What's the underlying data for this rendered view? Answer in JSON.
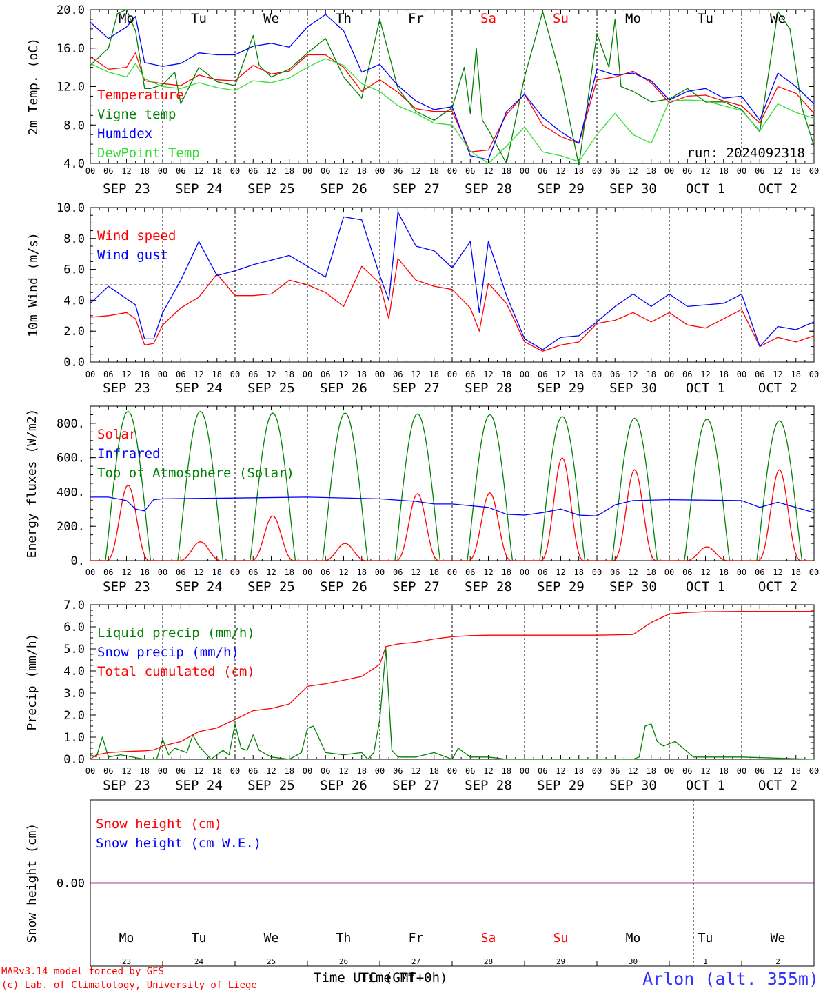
{
  "footer": {
    "credit_line1": "MARv3.14 model forced by GFS",
    "credit_line2": "(c) Lab. of Climatology, University of Liege",
    "time_label": "Time UTC (GMT+0h)",
    "time_label_overlap": "Time Tf",
    "station": "Arlon (alt. 355m)"
  },
  "run_label": "run: 2024092318",
  "colors": {
    "red": "#ff0000",
    "green": "#008000",
    "blue": "#0000ff",
    "lime": "#33dd33",
    "purple": "#800080",
    "grid": "#000000"
  },
  "days": [
    {
      "dow": "Mo",
      "date": "SEP 23",
      "num": "23",
      "weekend": false
    },
    {
      "dow": "Tu",
      "date": "SEP 24",
      "num": "24",
      "weekend": false
    },
    {
      "dow": "We",
      "date": "SEP 25",
      "num": "25",
      "weekend": false
    },
    {
      "dow": "Th",
      "date": "SEP 26",
      "num": "26",
      "weekend": false
    },
    {
      "dow": "Fr",
      "date": "SEP 27",
      "num": "27",
      "weekend": false
    },
    {
      "dow": "Sa",
      "date": "SEP 28",
      "num": "28",
      "weekend": true
    },
    {
      "dow": "Su",
      "date": "SEP 29",
      "num": "29",
      "weekend": true
    },
    {
      "dow": "Mo",
      "date": "SEP 30",
      "num": "30",
      "weekend": false
    },
    {
      "dow": "Tu",
      "date": "OCT  1",
      "num": "1",
      "weekend": false
    },
    {
      "dow": "We",
      "date": "OCT  2",
      "num": "2",
      "weekend": false
    }
  ],
  "hour_ticks": [
    "00",
    "06",
    "12",
    "18"
  ],
  "chart_data": [
    {
      "id": "temp",
      "type": "line",
      "ylabel": "2m Temp. (oC)",
      "ylim": [
        4,
        20
      ],
      "yticks": [
        "4.0",
        "8.0",
        "12.0",
        "16.0",
        "20.0"
      ],
      "legend": [
        "Temperature",
        "Vigne temp",
        "Humidex",
        "DewPoint Temp"
      ],
      "legend_colors": [
        "red",
        "green",
        "blue",
        "lime"
      ],
      "series": [
        {
          "name": "Temperature",
          "color": "red",
          "x": [
            0,
            6,
            12,
            15,
            18,
            24,
            30,
            36,
            42,
            48,
            54,
            60,
            66,
            72,
            78,
            84,
            90,
            96,
            102,
            108,
            114,
            120,
            126,
            132,
            138,
            144,
            150,
            156,
            162,
            168,
            174,
            180,
            186,
            192,
            198,
            204,
            210,
            216,
            222,
            228,
            234,
            240
          ],
          "y": [
            15.1,
            13.8,
            14.0,
            15.5,
            12.6,
            12.3,
            12.1,
            13.2,
            12.7,
            12.6,
            14.2,
            13.3,
            13.6,
            15.3,
            15.3,
            14.0,
            11.5,
            12.7,
            11.4,
            9.7,
            9.4,
            9.4,
            5.2,
            5.4,
            9.1,
            11.2,
            8.0,
            6.8,
            6.1,
            12.7,
            13.0,
            13.6,
            12.4,
            10.3,
            11.0,
            11.1,
            10.5,
            10.0,
            8.2,
            12.0,
            11.3,
            9.2
          ]
        },
        {
          "name": "Vigne temp",
          "color": "green",
          "x": [
            0,
            6,
            9,
            12,
            15,
            18,
            20,
            24,
            28,
            30,
            36,
            42,
            48,
            54,
            56,
            60,
            66,
            72,
            78,
            84,
            90,
            96,
            102,
            108,
            114,
            120,
            124,
            126,
            128,
            130,
            132,
            138,
            144,
            150,
            156,
            162,
            168,
            172,
            174,
            176,
            180,
            186,
            192,
            198,
            204,
            210,
            216,
            222,
            228,
            232,
            236,
            240
          ],
          "y": [
            14.2,
            16.0,
            19.6,
            20.0,
            17.8,
            11.8,
            11.8,
            12.2,
            13.5,
            10.2,
            14.0,
            12.5,
            12.1,
            17.3,
            14.2,
            13.0,
            13.8,
            15.5,
            17.0,
            13.0,
            10.8,
            19.0,
            11.8,
            9.4,
            8.5,
            9.8,
            14.0,
            9.2,
            16.0,
            8.5,
            7.5,
            4.0,
            13.0,
            19.8,
            13.0,
            3.8,
            17.5,
            14.0,
            19.0,
            12.0,
            11.5,
            10.4,
            10.7,
            11.8,
            10.4,
            10.4,
            9.6,
            7.3,
            19.8,
            18.0,
            9.8,
            5.8
          ]
        },
        {
          "name": "Humidex",
          "color": "blue",
          "x": [
            0,
            6,
            12,
            15,
            18,
            24,
            30,
            36,
            42,
            48,
            54,
            60,
            66,
            72,
            78,
            84,
            90,
            96,
            102,
            108,
            114,
            120,
            126,
            132,
            138,
            144,
            150,
            156,
            162,
            168,
            174,
            180,
            186,
            192,
            198,
            204,
            210,
            216,
            222,
            228,
            234,
            240
          ],
          "y": [
            18.7,
            17.0,
            18.2,
            19.3,
            14.5,
            14.1,
            14.4,
            15.5,
            15.3,
            15.3,
            16.2,
            16.5,
            16.1,
            18.2,
            19.5,
            17.8,
            13.5,
            14.3,
            12.1,
            10.5,
            9.6,
            9.9,
            4.8,
            4.4,
            9.4,
            11.2,
            8.8,
            7.3,
            6.1,
            13.8,
            13.2,
            13.4,
            12.6,
            10.6,
            11.5,
            11.8,
            10.8,
            11.0,
            8.5,
            13.4,
            12.0,
            10.2
          ]
        },
        {
          "name": "DewPoint Temp",
          "color": "lime",
          "x": [
            0,
            6,
            12,
            15,
            18,
            24,
            30,
            36,
            42,
            48,
            54,
            60,
            66,
            72,
            78,
            84,
            90,
            96,
            102,
            108,
            114,
            120,
            126,
            132,
            138,
            144,
            150,
            156,
            162,
            168,
            174,
            180,
            186,
            192,
            198,
            204,
            210,
            216,
            222,
            228,
            234,
            240
          ],
          "y": [
            14.4,
            13.5,
            13.0,
            14.4,
            12.8,
            12.0,
            11.8,
            12.4,
            11.9,
            11.6,
            12.6,
            12.4,
            12.9,
            14.0,
            14.9,
            14.2,
            12.3,
            11.5,
            10.0,
            9.2,
            8.2,
            8.0,
            5.3,
            4.0,
            5.8,
            7.8,
            5.2,
            4.8,
            4.2,
            7.0,
            9.2,
            7.0,
            6.1,
            10.5,
            10.6,
            10.5,
            10.0,
            9.5,
            7.4,
            10.2,
            9.3,
            8.7
          ]
        }
      ]
    },
    {
      "id": "wind",
      "type": "line",
      "ylabel": "10m Wind (m/s)",
      "ylim": [
        0,
        10
      ],
      "yticks": [
        "0.0",
        "2.0",
        "4.0",
        "6.0",
        "8.0",
        "10.0"
      ],
      "dashed_ref": 5,
      "legend": [
        "Wind speed",
        "Wind gust"
      ],
      "legend_colors": [
        "red",
        "blue"
      ],
      "series": [
        {
          "name": "Wind speed",
          "color": "red",
          "x": [
            0,
            6,
            12,
            15,
            18,
            21,
            24,
            30,
            36,
            42,
            48,
            54,
            60,
            66,
            72,
            78,
            84,
            90,
            96,
            99,
            102,
            108,
            114,
            120,
            126,
            129,
            132,
            138,
            144,
            150,
            156,
            162,
            168,
            174,
            180,
            186,
            192,
            198,
            204,
            210,
            216,
            222,
            228,
            234,
            240
          ],
          "y": [
            2.9,
            3.0,
            3.2,
            2.8,
            1.1,
            1.2,
            2.4,
            3.5,
            4.2,
            5.7,
            4.3,
            4.3,
            4.4,
            5.3,
            5.0,
            4.5,
            3.6,
            6.2,
            5.1,
            2.8,
            6.7,
            5.3,
            4.9,
            4.7,
            3.5,
            2.0,
            5.1,
            3.8,
            1.3,
            0.7,
            1.1,
            1.3,
            2.5,
            2.7,
            3.2,
            2.6,
            3.2,
            2.4,
            2.2,
            2.8,
            3.4,
            1.0,
            1.6,
            1.3,
            1.7
          ]
        },
        {
          "name": "Wind gust",
          "color": "blue",
          "x": [
            0,
            6,
            12,
            15,
            18,
            21,
            24,
            30,
            36,
            42,
            48,
            54,
            60,
            66,
            72,
            78,
            84,
            90,
            96,
            99,
            102,
            108,
            114,
            120,
            126,
            129,
            132,
            138,
            144,
            150,
            156,
            162,
            168,
            174,
            180,
            186,
            192,
            198,
            204,
            210,
            216,
            222,
            228,
            234,
            240
          ],
          "y": [
            3.8,
            4.9,
            4.1,
            3.7,
            1.5,
            1.5,
            3.2,
            5.3,
            7.8,
            5.6,
            5.9,
            6.3,
            6.6,
            6.9,
            6.2,
            5.5,
            9.4,
            9.2,
            5.6,
            4.0,
            9.7,
            7.5,
            7.2,
            6.1,
            7.8,
            3.2,
            7.8,
            4.3,
            1.5,
            0.8,
            1.6,
            1.7,
            2.6,
            3.6,
            4.4,
            3.6,
            4.4,
            3.6,
            3.7,
            3.8,
            4.4,
            1.0,
            2.3,
            2.1,
            2.6
          ]
        }
      ]
    },
    {
      "id": "flux",
      "type": "line",
      "ylabel": "Energy fluxes (W/m2)",
      "ylim": [
        0,
        900
      ],
      "yticks": [
        "0.",
        "200.",
        "400.",
        "600.",
        "800."
      ],
      "legend": [
        "Solar",
        "Infrared",
        "Top of Atmosphere (Solar)"
      ],
      "legend_colors": [
        "red",
        "blue",
        "green"
      ],
      "solar_peaks": [
        440,
        110,
        260,
        100,
        390,
        395,
        600,
        530,
        80,
        530
      ],
      "toa_peaks": [
        870,
        870,
        860,
        860,
        855,
        850,
        840,
        830,
        825,
        815
      ],
      "series": [
        {
          "name": "Infrared",
          "color": "blue",
          "x": [
            0,
            6,
            12,
            15,
            18,
            21,
            24,
            48,
            72,
            96,
            108,
            114,
            120,
            126,
            132,
            138,
            144,
            150,
            156,
            162,
            168,
            174,
            180,
            192,
            216,
            222,
            228,
            240
          ],
          "y": [
            370,
            370,
            350,
            300,
            290,
            355,
            360,
            365,
            370,
            360,
            345,
            330,
            330,
            320,
            310,
            270,
            265,
            280,
            300,
            265,
            260,
            325,
            350,
            355,
            350,
            310,
            340,
            280
          ]
        }
      ]
    },
    {
      "id": "precip",
      "type": "line",
      "ylabel": "Precip (mm/h)",
      "ylim": [
        0,
        7
      ],
      "yticks": [
        "0.0",
        "1.0",
        "2.0",
        "3.0",
        "4.0",
        "5.0",
        "6.0",
        "7.0"
      ],
      "legend": [
        "Liquid precip (mm/h)",
        "Snow precip (mm/h)",
        "Total cumulated (cm)"
      ],
      "legend_colors": [
        "green",
        "blue",
        "red"
      ],
      "series": [
        {
          "name": "Liquid precip (mm/h)",
          "color": "green",
          "x": [
            0,
            2,
            4,
            6,
            10,
            18,
            22,
            24,
            26,
            28,
            32,
            34,
            36,
            40,
            44,
            46,
            48,
            50,
            52,
            54,
            56,
            60,
            66,
            70,
            72,
            74,
            78,
            84,
            90,
            92,
            94,
            96,
            98,
            100,
            102,
            108,
            114,
            120,
            122,
            126,
            132,
            138,
            180,
            182,
            184,
            186,
            188,
            190,
            194,
            200,
            216,
            240
          ],
          "y": [
            0.2,
            0.1,
            1.0,
            0.1,
            0.2,
            0.0,
            0.0,
            0.9,
            0.2,
            0.5,
            0.3,
            1.1,
            0.6,
            0.0,
            0.4,
            0.2,
            1.6,
            0.5,
            0.4,
            1.1,
            0.4,
            0.1,
            0.0,
            0.3,
            1.4,
            1.5,
            0.3,
            0.2,
            0.3,
            0.0,
            0.3,
            1.8,
            5.0,
            0.4,
            0.1,
            0.1,
            0.3,
            0.0,
            0.5,
            0.1,
            0.1,
            0.0,
            0.0,
            0.1,
            1.5,
            1.6,
            0.8,
            0.6,
            0.8,
            0.1,
            0.1,
            0.0
          ]
        },
        {
          "name": "Total cumulated (cm)",
          "color": "red",
          "x": [
            0,
            2,
            6,
            12,
            18,
            21,
            24,
            30,
            36,
            42,
            48,
            54,
            60,
            66,
            72,
            78,
            84,
            90,
            96,
            98,
            102,
            108,
            114,
            120,
            126,
            132,
            144,
            168,
            180,
            186,
            192,
            198,
            204,
            216,
            240
          ],
          "y": [
            0.0,
            0.2,
            0.3,
            0.35,
            0.38,
            0.42,
            0.6,
            0.8,
            1.25,
            1.42,
            1.8,
            2.2,
            2.3,
            2.5,
            3.3,
            3.42,
            3.58,
            3.75,
            4.3,
            5.1,
            5.22,
            5.3,
            5.45,
            5.55,
            5.6,
            5.62,
            5.62,
            5.62,
            5.65,
            6.2,
            6.58,
            6.65,
            6.68,
            6.7,
            6.7
          ]
        }
      ]
    },
    {
      "id": "snow",
      "type": "line",
      "ylabel": "Snow height (cm)",
      "ylim": [
        -1,
        1
      ],
      "yticks": [
        "0.00"
      ],
      "legend": [
        "Snow height (cm)",
        "Snow height (cm W.E.)"
      ],
      "legend_colors": [
        "red",
        "blue"
      ],
      "series": [
        {
          "name": "Snow height (cm)",
          "color": "red",
          "x": [
            0,
            240
          ],
          "y": [
            0,
            0
          ]
        },
        {
          "name": "Snow height (cm W.E.)",
          "color": "blue",
          "x": [
            0,
            240
          ],
          "y": [
            0,
            0
          ]
        }
      ]
    }
  ]
}
